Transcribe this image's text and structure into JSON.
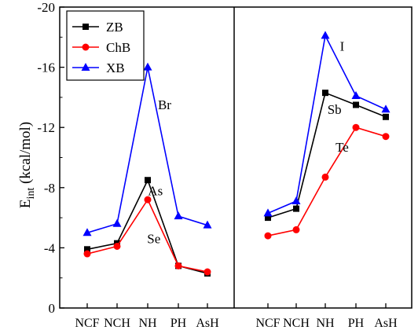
{
  "chart_data": {
    "type": "line",
    "ylabel_main": "E",
    "ylabel_sub": "int",
    "ylabel_rest": " (kcal/mol)",
    "ylim": [
      -20,
      0
    ],
    "yticks": [
      "-20",
      "-16",
      "-12",
      "-8",
      "-4",
      "0"
    ],
    "ytick_values": [
      -20,
      -16,
      -12,
      -8,
      -4,
      0
    ],
    "legend_placement": "top-left",
    "grid": false,
    "legend": [
      {
        "name": "ZB",
        "color": "#000000",
        "marker": "square"
      },
      {
        "name": "ChB",
        "color": "#ff0000",
        "marker": "circle"
      },
      {
        "name": "XB",
        "color": "#0000ff",
        "marker": "triangle"
      }
    ],
    "panels": [
      {
        "categories": [
          "NCF",
          "NCH",
          "NH",
          "PH",
          "AsH"
        ],
        "series": [
          {
            "name": "ZB",
            "values": [
              -3.9,
              -4.3,
              -8.5,
              -2.8,
              -2.3
            ]
          },
          {
            "name": "ChB",
            "values": [
              -3.6,
              -4.1,
              -7.2,
              -2.8,
              -2.4
            ]
          },
          {
            "name": "XB",
            "values": [
              -5.0,
              -5.6,
              -16.0,
              -6.1,
              -5.5
            ]
          }
        ],
        "annotations": [
          {
            "text": "Br",
            "x": 2.55,
            "y": -13.2
          },
          {
            "text": "As",
            "x": 2.25,
            "y": -7.5
          },
          {
            "text": "Se",
            "x": 2.2,
            "y": -4.3
          }
        ]
      },
      {
        "categories": [
          "NCF",
          "NCH",
          "NH",
          "PH",
          "AsH"
        ],
        "series": [
          {
            "name": "ZB",
            "values": [
              -6.0,
              -6.6,
              -14.3,
              -13.5,
              -12.7
            ]
          },
          {
            "name": "ChB",
            "values": [
              -4.8,
              -5.2,
              -8.7,
              -12.0,
              -11.4
            ]
          },
          {
            "name": "XB",
            "values": [
              -6.3,
              -7.1,
              -18.1,
              -14.1,
              -13.2
            ]
          }
        ],
        "annotations": [
          {
            "text": "I",
            "x": 2.55,
            "y": -17.1
          },
          {
            "text": "Sb",
            "x": 2.3,
            "y": -12.9
          },
          {
            "text": "Te",
            "x": 2.55,
            "y": -10.4
          }
        ]
      }
    ]
  }
}
